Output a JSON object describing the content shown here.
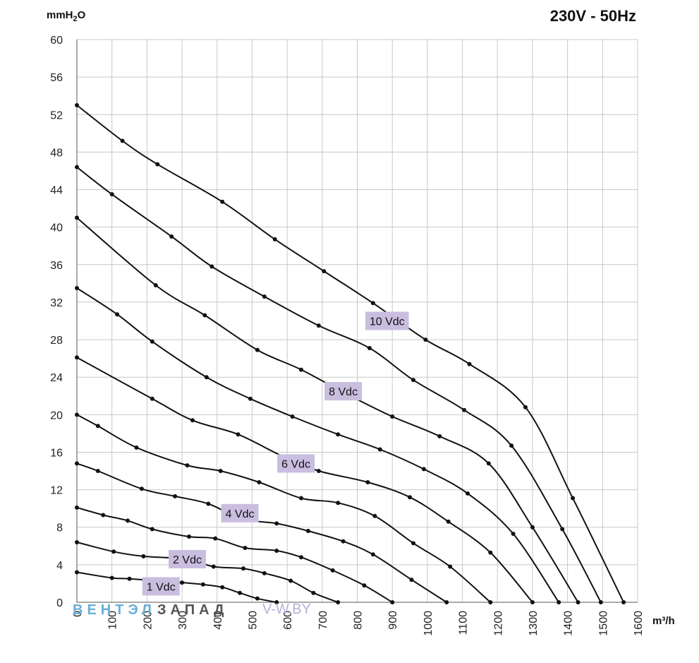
{
  "chart_data": {
    "type": "line",
    "title": "230V - 50Hz",
    "ylabel_main": "mmH",
    "ylabel_sub": "2",
    "ylabel_end": "O",
    "xlabel": "m³/h",
    "xlim": [
      0,
      1600
    ],
    "ylim": [
      0,
      60
    ],
    "x_ticks": [
      "0",
      "100",
      "200",
      "300",
      "400",
      "500",
      "600",
      "700",
      "800",
      "900",
      "1000",
      "1100",
      "1200",
      "1300",
      "1400",
      "1500",
      "1600"
    ],
    "y_ticks": [
      "0",
      "4",
      "8",
      "12",
      "16",
      "20",
      "24",
      "28",
      "32",
      "36",
      "40",
      "44",
      "48",
      "52",
      "56",
      "60"
    ],
    "grid": true,
    "series": [
      {
        "name": "1 Vdc",
        "labeled": true,
        "label_at": [
          240,
          1.7
        ],
        "points": [
          [
            0,
            3.2
          ],
          [
            100,
            2.6
          ],
          [
            150,
            2.5
          ],
          [
            300,
            2.1
          ],
          [
            360,
            1.9
          ],
          [
            415,
            1.6
          ],
          [
            465,
            1.0
          ],
          [
            515,
            0.4
          ],
          [
            570,
            0
          ]
        ]
      },
      {
        "name": "",
        "labeled": false,
        "points": [
          [
            0,
            6.4
          ],
          [
            105,
            5.4
          ],
          [
            190,
            4.9
          ],
          [
            315,
            4.6
          ],
          [
            390,
            3.8
          ],
          [
            475,
            3.6
          ],
          [
            535,
            3.1
          ],
          [
            610,
            2.3
          ],
          [
            675,
            1.0
          ],
          [
            745,
            0
          ]
        ]
      },
      {
        "name": "2 Vdc",
        "labeled": true,
        "label_at": [
          315,
          4.6
        ],
        "points": [
          [
            0,
            10.1
          ],
          [
            75,
            9.3
          ],
          [
            145,
            8.7
          ],
          [
            215,
            7.8
          ],
          [
            320,
            7.0
          ],
          [
            395,
            6.8
          ],
          [
            480,
            5.8
          ],
          [
            570,
            5.5
          ],
          [
            640,
            4.8
          ],
          [
            730,
            3.4
          ],
          [
            820,
            1.8
          ],
          [
            900,
            0
          ]
        ]
      },
      {
        "name": "",
        "labeled": false,
        "points": [
          [
            0,
            14.8
          ],
          [
            60,
            14.0
          ],
          [
            185,
            12.1
          ],
          [
            280,
            11.3
          ],
          [
            375,
            10.5
          ],
          [
            470,
            8.9
          ],
          [
            570,
            8.4
          ],
          [
            660,
            7.6
          ],
          [
            760,
            6.5
          ],
          [
            845,
            5.1
          ],
          [
            955,
            2.4
          ],
          [
            1055,
            0
          ]
        ]
      },
      {
        "name": "4 Vdc",
        "labeled": true,
        "label_at": [
          465,
          9.5
        ],
        "points": [
          [
            0,
            20.0
          ],
          [
            60,
            18.8
          ],
          [
            170,
            16.5
          ],
          [
            315,
            14.6
          ],
          [
            410,
            14.0
          ],
          [
            520,
            12.8
          ],
          [
            640,
            11.1
          ],
          [
            745,
            10.6
          ],
          [
            850,
            9.2
          ],
          [
            960,
            6.3
          ],
          [
            1065,
            3.8
          ],
          [
            1180,
            0
          ]
        ]
      },
      {
        "name": "",
        "labeled": false,
        "points": [
          [
            0,
            26.1
          ],
          [
            215,
            21.7
          ],
          [
            330,
            19.4
          ],
          [
            460,
            17.9
          ],
          [
            590,
            15.5
          ],
          [
            690,
            14.0
          ],
          [
            830,
            12.8
          ],
          [
            950,
            11.2
          ],
          [
            1060,
            8.6
          ],
          [
            1180,
            5.3
          ],
          [
            1300,
            0
          ]
        ]
      },
      {
        "name": "6 Vdc",
        "labeled": true,
        "label_at": [
          625,
          14.8
        ],
        "points": [
          [
            0,
            33.5
          ],
          [
            115,
            30.7
          ],
          [
            215,
            27.8
          ],
          [
            370,
            24.0
          ],
          [
            495,
            21.7
          ],
          [
            615,
            19.8
          ],
          [
            745,
            17.9
          ],
          [
            865,
            16.3
          ],
          [
            990,
            14.2
          ],
          [
            1115,
            11.6
          ],
          [
            1245,
            7.3
          ],
          [
            1375,
            0
          ]
        ]
      },
      {
        "name": "",
        "labeled": false,
        "points": [
          [
            0,
            41.0
          ],
          [
            225,
            33.8
          ],
          [
            365,
            30.6
          ],
          [
            515,
            26.9
          ],
          [
            640,
            24.8
          ],
          [
            775,
            22.1
          ],
          [
            900,
            19.8
          ],
          [
            1035,
            17.7
          ],
          [
            1175,
            14.8
          ],
          [
            1300,
            8.0
          ],
          [
            1430,
            0
          ]
        ]
      },
      {
        "name": "8 Vdc",
        "labeled": true,
        "label_at": [
          760,
          22.5
        ],
        "points": [
          [
            0,
            46.4
          ],
          [
            100,
            43.5
          ],
          [
            270,
            39.0
          ],
          [
            385,
            35.8
          ],
          [
            535,
            32.6
          ],
          [
            690,
            29.5
          ],
          [
            835,
            27.1
          ],
          [
            960,
            23.7
          ],
          [
            1105,
            20.5
          ],
          [
            1240,
            16.7
          ],
          [
            1385,
            7.8
          ],
          [
            1495,
            0
          ]
        ]
      },
      {
        "name": "10 Vdc",
        "labeled": true,
        "label_at": [
          885,
          30.0
        ],
        "points": [
          [
            0,
            53.0
          ],
          [
            130,
            49.2
          ],
          [
            230,
            46.7
          ],
          [
            415,
            42.7
          ],
          [
            565,
            38.7
          ],
          [
            705,
            35.3
          ],
          [
            845,
            31.9
          ],
          [
            995,
            28.0
          ],
          [
            1120,
            25.4
          ],
          [
            1280,
            20.8
          ],
          [
            1415,
            11.1
          ],
          [
            1560,
            0
          ]
        ]
      }
    ]
  },
  "watermark": {
    "part1": "ВЕНТЭЛ",
    "part2": "ЗАПАД",
    "site_prefix": "V-",
    "site_rest": "W.BY",
    "color1": "#6aaed6",
    "color2": "#555555",
    "color3": "#b9b0d8"
  }
}
